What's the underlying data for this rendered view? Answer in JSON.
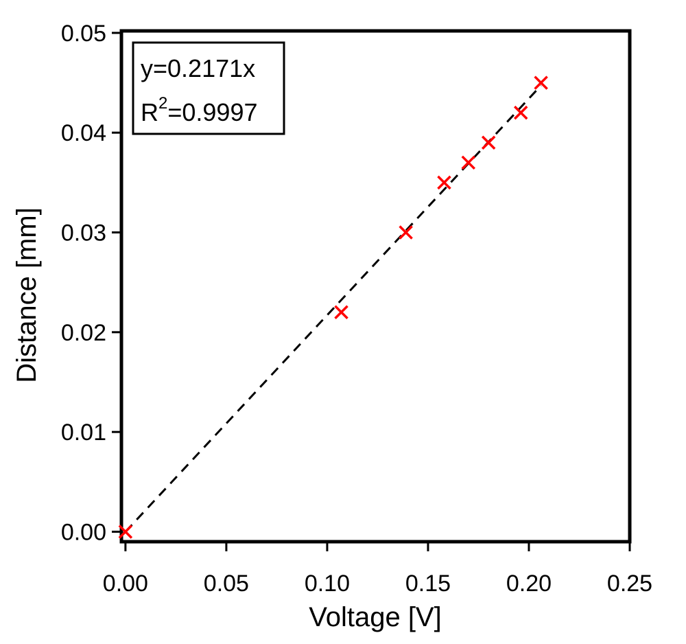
{
  "chart_data": {
    "type": "scatter",
    "title": "",
    "xlabel": "Voltage [V]",
    "ylabel": "Distance [mm]",
    "xlim": [
      -0.002,
      0.25
    ],
    "ylim": [
      -0.001,
      0.0502
    ],
    "x_ticks": [
      "0.00",
      "0.05",
      "0.10",
      "0.15",
      "0.20",
      "0.25"
    ],
    "y_ticks": [
      "0.00",
      "0.01",
      "0.02",
      "0.03",
      "0.04",
      "0.05"
    ],
    "series": [
      {
        "marker": "x",
        "color": "#ff0000",
        "points": [
          {
            "x": 0.0,
            "y": 0.0
          },
          {
            "x": 0.107,
            "y": 0.022
          },
          {
            "x": 0.139,
            "y": 0.03
          },
          {
            "x": 0.158,
            "y": 0.035
          },
          {
            "x": 0.17,
            "y": 0.037
          },
          {
            "x": 0.18,
            "y": 0.039
          },
          {
            "x": 0.196,
            "y": 0.042
          },
          {
            "x": 0.206,
            "y": 0.045
          }
        ]
      }
    ],
    "fit": {
      "slope": 0.2171,
      "style": "dashed",
      "color": "#000000",
      "x_range": [
        0.0,
        0.206
      ],
      "equation_label": "y=0.2171x",
      "r2_prefix": "R",
      "r2_superscript": "2",
      "r2_value": "=0.9997"
    },
    "legend_placement": "top-left",
    "grid": false
  }
}
